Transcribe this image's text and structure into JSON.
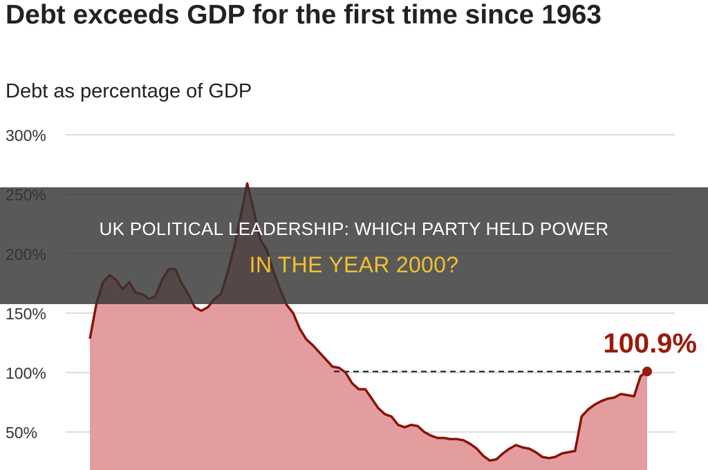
{
  "chart_data": {
    "type": "area",
    "title": "Debt exceeds GDP for the first time since 1963",
    "subtitle": "Debt as percentage of GDP",
    "xlabel": "",
    "ylabel": "",
    "ylim": [
      0,
      300
    ],
    "y_ticks": [
      "300%",
      "250%",
      "200%",
      "150%",
      "100%",
      "50%"
    ],
    "y_tick_values": [
      300,
      250,
      200,
      150,
      100,
      50
    ],
    "grid": true,
    "values": [
      128.5,
      158,
      176,
      182,
      178,
      170,
      176,
      167,
      166,
      162,
      164,
      178,
      187,
      187,
      175,
      166,
      155,
      152,
      155,
      162,
      166,
      184,
      205,
      232,
      259,
      236,
      212,
      203,
      185,
      170,
      157,
      150,
      137,
      128,
      123,
      117,
      111,
      105,
      104,
      100,
      91,
      86,
      86,
      78,
      70,
      65,
      63,
      56,
      54,
      56,
      55,
      50,
      47,
      45,
      45,
      44,
      44,
      43,
      40,
      36,
      30,
      26,
      27,
      32,
      36,
      39,
      37,
      36,
      33,
      29,
      28,
      29,
      32,
      33,
      34,
      63,
      69,
      73,
      76,
      78,
      79,
      82,
      81,
      80,
      97,
      100.9
    ],
    "annotation": {
      "label": "100.9%",
      "value": 100.9
    },
    "reference_line": 100.9,
    "colors": {
      "line": "#8b1208",
      "fill": "#e49d9e",
      "annotation": "#9a1a0c",
      "grid": "#d0d0d0"
    }
  },
  "banner": {
    "line1": "UK POLITICAL LEADERSHIP: WHICH PARTY HELD POWER",
    "line2": "IN THE YEAR 2000?",
    "colors": {
      "line1": "#ffffff",
      "line2": "#f2c12e"
    }
  }
}
